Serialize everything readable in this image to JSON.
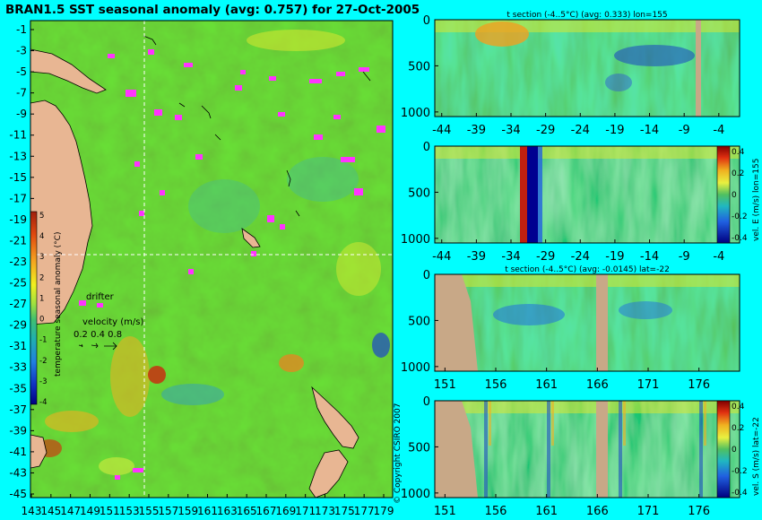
{
  "title": "BRAN1.5 SST seasonal anomaly (avg: 0.757) for 27-Oct-2005",
  "colors": {
    "background": "#00ffff",
    "land": "#e8b693",
    "drifter": "#ff33ff",
    "section_land": "#c8a887"
  },
  "chart_data": [
    {
      "type": "heatmap",
      "id": "sst_map",
      "title": "BRAN1.5 SST seasonal anomaly (avg: 0.757) for 27-Oct-2005",
      "x_ticks": [
        "143",
        "145",
        "147",
        "149",
        "151",
        "153",
        "155",
        "157",
        "159",
        "161",
        "163",
        "165",
        "167",
        "169",
        "171",
        "173",
        "175",
        "177",
        "179"
      ],
      "y_ticks": [
        "-1",
        "-3",
        "-5",
        "-7",
        "-9",
        "-11",
        "-13",
        "-15",
        "-17",
        "-19",
        "-21",
        "-23",
        "-25",
        "-27",
        "-29",
        "-31",
        "-33",
        "-35",
        "-37",
        "-39",
        "-41",
        "-43",
        "-45"
      ],
      "xlim": [
        143,
        180
      ],
      "ylim": [
        -45,
        0
      ],
      "crosshair": {
        "lon": 155,
        "lat": -22
      },
      "colorbar": {
        "label": "temperature seasonal anomaly (°C)",
        "ticks": [
          "5",
          "4",
          "3",
          "2",
          "1",
          "0",
          "-1",
          "-2",
          "-3",
          "-4"
        ],
        "range": [
          -4,
          5
        ]
      },
      "legend": {
        "drifter": "drifter",
        "velocity_title": "velocity (m/s)",
        "velocity_scale": "0.2 0.4 0.8"
      },
      "copyright": "© Copyright CSIRO 2007"
    },
    {
      "type": "heatmap",
      "id": "t_section_lon",
      "title": "t section (-4..5°C) (avg: 0.333) lon=155",
      "x_ticks": [
        "-44",
        "-39",
        "-34",
        "-29",
        "-24",
        "-19",
        "-14",
        "-9",
        "-4"
      ],
      "y_ticks": [
        "0",
        "500",
        "1000"
      ],
      "xlim": [
        -45,
        -1
      ],
      "ylim": [
        1050,
        0
      ]
    },
    {
      "type": "heatmap",
      "id": "vel_e_lon",
      "title": "",
      "x_ticks": [
        "-44",
        "-39",
        "-34",
        "-29",
        "-24",
        "-19",
        "-14",
        "-9",
        "-4"
      ],
      "y_ticks": [
        "0",
        "500",
        "1000"
      ],
      "xlim": [
        -45,
        -1
      ],
      "ylim": [
        1050,
        0
      ],
      "colorbar": {
        "label": "vel. E (m/s) lon=155",
        "ticks": [
          "0.4",
          "0.2",
          "0",
          "-0.2",
          "-0.4"
        ]
      }
    },
    {
      "type": "heatmap",
      "id": "t_section_lat",
      "title": "t section (-4..5°C) (avg: -0.0145) lat=-22",
      "x_ticks": [
        "151",
        "156",
        "161",
        "166",
        "171",
        "176"
      ],
      "y_ticks": [
        "0",
        "500",
        "1000"
      ],
      "xlim": [
        150,
        180
      ],
      "ylim": [
        1050,
        0
      ]
    },
    {
      "type": "heatmap",
      "id": "vel_s_lat",
      "title": "",
      "x_ticks": [
        "151",
        "156",
        "161",
        "166",
        "171",
        "176"
      ],
      "y_ticks": [
        "0",
        "500",
        "1000"
      ],
      "xlim": [
        150,
        180
      ],
      "ylim": [
        1050,
        0
      ],
      "colorbar": {
        "label": "vel. S (m/s) lat=-22",
        "ticks": [
          "0.4",
          "0.2",
          "0",
          "-0.2",
          "-0.4"
        ]
      }
    }
  ]
}
